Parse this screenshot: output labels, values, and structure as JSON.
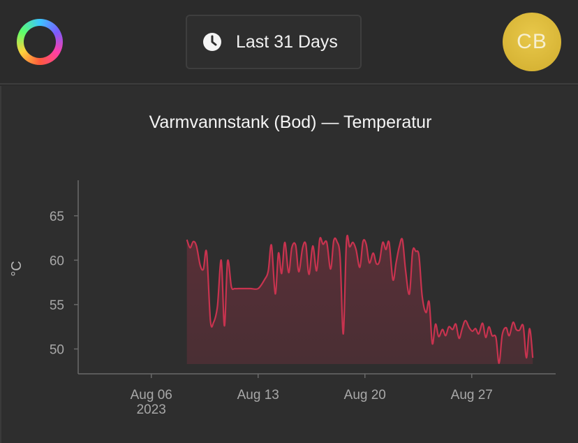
{
  "header": {
    "logo_icon": "ring-logo-icon",
    "range_icon": "clock-icon",
    "range_label": "Last 31 Days",
    "avatar_initials": "CB",
    "avatar_color": "#d9b83a"
  },
  "chart_data": {
    "type": "area",
    "title": "Varmvannstank (Bod) — Temperatur",
    "ylabel": "°C",
    "xlabel": "",
    "y_ticks": [
      50,
      55,
      60,
      65
    ],
    "x_ticks": [
      {
        "date": "2023-08-06",
        "label": "Aug 06",
        "sublabel": "2023"
      },
      {
        "date": "2023-08-13",
        "label": "Aug 13",
        "sublabel": ""
      },
      {
        "date": "2023-08-20",
        "label": "Aug 20",
        "sublabel": ""
      },
      {
        "date": "2023-08-27",
        "label": "Aug 27",
        "sublabel": ""
      }
    ],
    "xlim": [
      "2023-08-01T05:00",
      "2023-09-01T12:00"
    ],
    "ylim": [
      47.2,
      69
    ],
    "baseline": 48.3,
    "color": "#c8334f",
    "series": [
      {
        "values": [
          [
            "2023-08-08T08:00",
            62.3
          ],
          [
            "2023-08-08T13:00",
            61.4
          ],
          [
            "2023-08-08T18:00",
            62.1
          ],
          [
            "2023-08-08T23:00",
            61.6
          ],
          [
            "2023-08-09T05:00",
            59.4
          ],
          [
            "2023-08-09T10:00",
            59.0
          ],
          [
            "2023-08-09T15:00",
            60.9
          ],
          [
            "2023-08-09T21:00",
            53.2
          ],
          [
            "2023-08-10T02:00",
            53.0
          ],
          [
            "2023-08-10T08:00",
            54.8
          ],
          [
            "2023-08-10T14:00",
            60.0
          ],
          [
            "2023-08-10T19:00",
            52.6
          ],
          [
            "2023-08-11T00:00",
            59.9
          ],
          [
            "2023-08-11T06:00",
            57.0
          ],
          [
            "2023-08-11T11:00",
            56.8
          ],
          [
            "2023-08-11T17:00",
            56.8
          ],
          [
            "2023-08-12T00:00",
            56.8
          ],
          [
            "2023-08-12T12:00",
            56.8
          ],
          [
            "2023-08-13T00:00",
            56.8
          ],
          [
            "2023-08-13T10:00",
            57.8
          ],
          [
            "2023-08-13T16:00",
            58.8
          ],
          [
            "2023-08-13T21:00",
            61.7
          ],
          [
            "2023-08-14T03:00",
            56.2
          ],
          [
            "2023-08-14T08:00",
            60.8
          ],
          [
            "2023-08-14T13:00",
            58.5
          ],
          [
            "2023-08-14T18:00",
            62.0
          ],
          [
            "2023-08-15T00:00",
            58.6
          ],
          [
            "2023-08-15T05:00",
            61.4
          ],
          [
            "2023-08-15T11:00",
            61.7
          ],
          [
            "2023-08-15T16:00",
            58.7
          ],
          [
            "2023-08-15T22:00",
            61.4
          ],
          [
            "2023-08-16T03:00",
            61.8
          ],
          [
            "2023-08-16T08:00",
            58.4
          ],
          [
            "2023-08-16T14:00",
            61.6
          ],
          [
            "2023-08-16T20:00",
            58.8
          ],
          [
            "2023-08-17T01:00",
            62.4
          ],
          [
            "2023-08-17T06:00",
            61.8
          ],
          [
            "2023-08-17T12:00",
            62.0
          ],
          [
            "2023-08-17T18:00",
            59.0
          ],
          [
            "2023-08-17T23:00",
            62.2
          ],
          [
            "2023-08-18T04:00",
            62.1
          ],
          [
            "2023-08-18T09:00",
            60.3
          ],
          [
            "2023-08-18T14:00",
            51.7
          ],
          [
            "2023-08-18T19:00",
            62.2
          ],
          [
            "2023-08-19T00:00",
            61.5
          ],
          [
            "2023-08-19T05:00",
            62.0
          ],
          [
            "2023-08-19T10:00",
            61.2
          ],
          [
            "2023-08-19T16:00",
            59.2
          ],
          [
            "2023-08-19T21:00",
            62.1
          ],
          [
            "2023-08-20T02:00",
            61.8
          ],
          [
            "2023-08-20T07:00",
            59.7
          ],
          [
            "2023-08-20T13:00",
            60.8
          ],
          [
            "2023-08-20T18:00",
            59.6
          ],
          [
            "2023-08-20T23:00",
            59.9
          ],
          [
            "2023-08-21T04:00",
            62.0
          ],
          [
            "2023-08-21T09:00",
            61.2
          ],
          [
            "2023-08-21T14:00",
            62.0
          ],
          [
            "2023-08-21T20:00",
            57.8
          ],
          [
            "2023-08-22T01:00",
            59.7
          ],
          [
            "2023-08-22T06:00",
            61.5
          ],
          [
            "2023-08-22T11:00",
            62.3
          ],
          [
            "2023-08-22T16:00",
            58.8
          ],
          [
            "2023-08-22T22:00",
            56.2
          ],
          [
            "2023-08-23T03:00",
            61.0
          ],
          [
            "2023-08-23T08:00",
            61.0
          ],
          [
            "2023-08-23T13:00",
            60.5
          ],
          [
            "2023-08-23T18:00",
            56.0
          ],
          [
            "2023-08-24T00:00",
            54.1
          ],
          [
            "2023-08-24T05:00",
            55.3
          ],
          [
            "2023-08-24T10:00",
            50.6
          ],
          [
            "2023-08-24T15:00",
            52.8
          ],
          [
            "2023-08-24T20:00",
            51.4
          ],
          [
            "2023-08-25T02:00",
            52.2
          ],
          [
            "2023-08-25T07:00",
            51.5
          ],
          [
            "2023-08-25T12:00",
            52.5
          ],
          [
            "2023-08-25T18:00",
            52.2
          ],
          [
            "2023-08-25T23:00",
            52.8
          ],
          [
            "2023-08-26T04:00",
            51.2
          ],
          [
            "2023-08-26T09:00",
            52.3
          ],
          [
            "2023-08-26T14:00",
            53.2
          ],
          [
            "2023-08-26T20:00",
            52.4
          ],
          [
            "2023-08-27T01:00",
            52.0
          ],
          [
            "2023-08-27T06:00",
            52.3
          ],
          [
            "2023-08-27T11:00",
            51.7
          ],
          [
            "2023-08-27T17:00",
            52.9
          ],
          [
            "2023-08-27T22:00",
            51.3
          ],
          [
            "2023-08-28T03:00",
            52.5
          ],
          [
            "2023-08-28T08:00",
            51.5
          ],
          [
            "2023-08-28T14:00",
            51.3
          ],
          [
            "2023-08-28T19:00",
            48.4
          ],
          [
            "2023-08-29T00:00",
            51.6
          ],
          [
            "2023-08-29T06:00",
            52.4
          ],
          [
            "2023-08-29T11:00",
            51.5
          ],
          [
            "2023-08-29T17:00",
            53.0
          ],
          [
            "2023-08-29T22:00",
            52.2
          ],
          [
            "2023-08-30T03:00",
            52.1
          ],
          [
            "2023-08-30T09:00",
            52.6
          ],
          [
            "2023-08-30T14:00",
            49.0
          ],
          [
            "2023-08-30T19:00",
            52.3
          ],
          [
            "2023-08-31T00:00",
            49.0
          ]
        ]
      }
    ]
  }
}
